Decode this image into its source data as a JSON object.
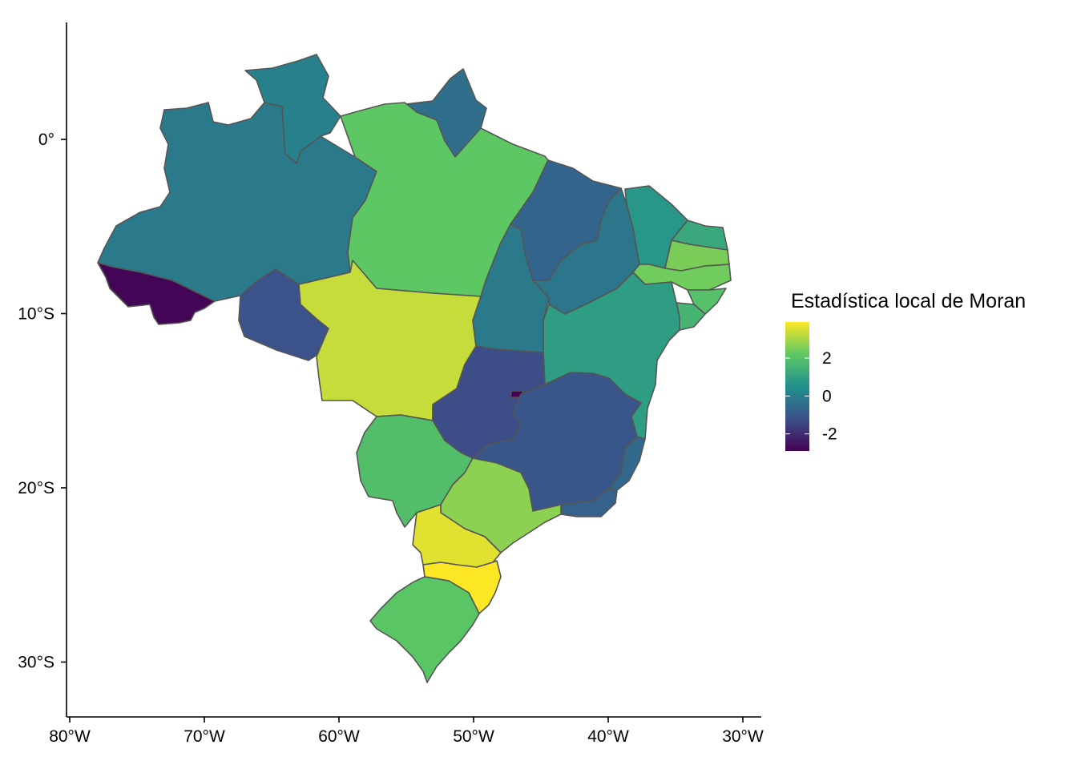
{
  "chart_data": {
    "type": "choropleth",
    "title": "",
    "x_ticks": [
      "80°W",
      "70°W",
      "60°W",
      "50°W",
      "40°W",
      "30°W"
    ],
    "y_ticks": [
      "0°",
      "10°S",
      "20°S",
      "30°S"
    ],
    "legend": {
      "title": "Estadística local de Moran",
      "range": [
        -2.9,
        3.9
      ],
      "ticks": [
        2,
        0,
        -2
      ],
      "tick_labels": [
        "2",
        "0",
        "-2"
      ],
      "colors": [
        "#440154",
        "#3b528b",
        "#21908d",
        "#5dc863",
        "#fde725"
      ]
    },
    "regions": [
      {
        "code": "AC",
        "value": -2.8
      },
      {
        "code": "AM",
        "value": -0.1
      },
      {
        "code": "RR",
        "value": 0.1
      },
      {
        "code": "AP",
        "value": -0.4
      },
      {
        "code": "PA",
        "value": 2.2
      },
      {
        "code": "RO",
        "value": -1.2
      },
      {
        "code": "MT",
        "value": 3.3
      },
      {
        "code": "TO",
        "value": -0.1
      },
      {
        "code": "MA",
        "value": -0.7
      },
      {
        "code": "PI",
        "value": -0.2
      },
      {
        "code": "CE",
        "value": 0.7
      },
      {
        "code": "RN",
        "value": 1.2
      },
      {
        "code": "PB",
        "value": 2.5
      },
      {
        "code": "PE",
        "value": 2.4
      },
      {
        "code": "AL",
        "value": 2.0
      },
      {
        "code": "SE",
        "value": 1.6
      },
      {
        "code": "BA",
        "value": 0.9
      },
      {
        "code": "GO",
        "value": -1.3
      },
      {
        "code": "DF",
        "value": -2.9
      },
      {
        "code": "MG",
        "value": -1.1
      },
      {
        "code": "ES",
        "value": -0.6
      },
      {
        "code": "RJ",
        "value": -0.8
      },
      {
        "code": "MS",
        "value": 1.9
      },
      {
        "code": "SP",
        "value": 2.7
      },
      {
        "code": "PR",
        "value": 3.6
      },
      {
        "code": "SC",
        "value": 3.9
      },
      {
        "code": "RS",
        "value": 2.1
      }
    ]
  }
}
